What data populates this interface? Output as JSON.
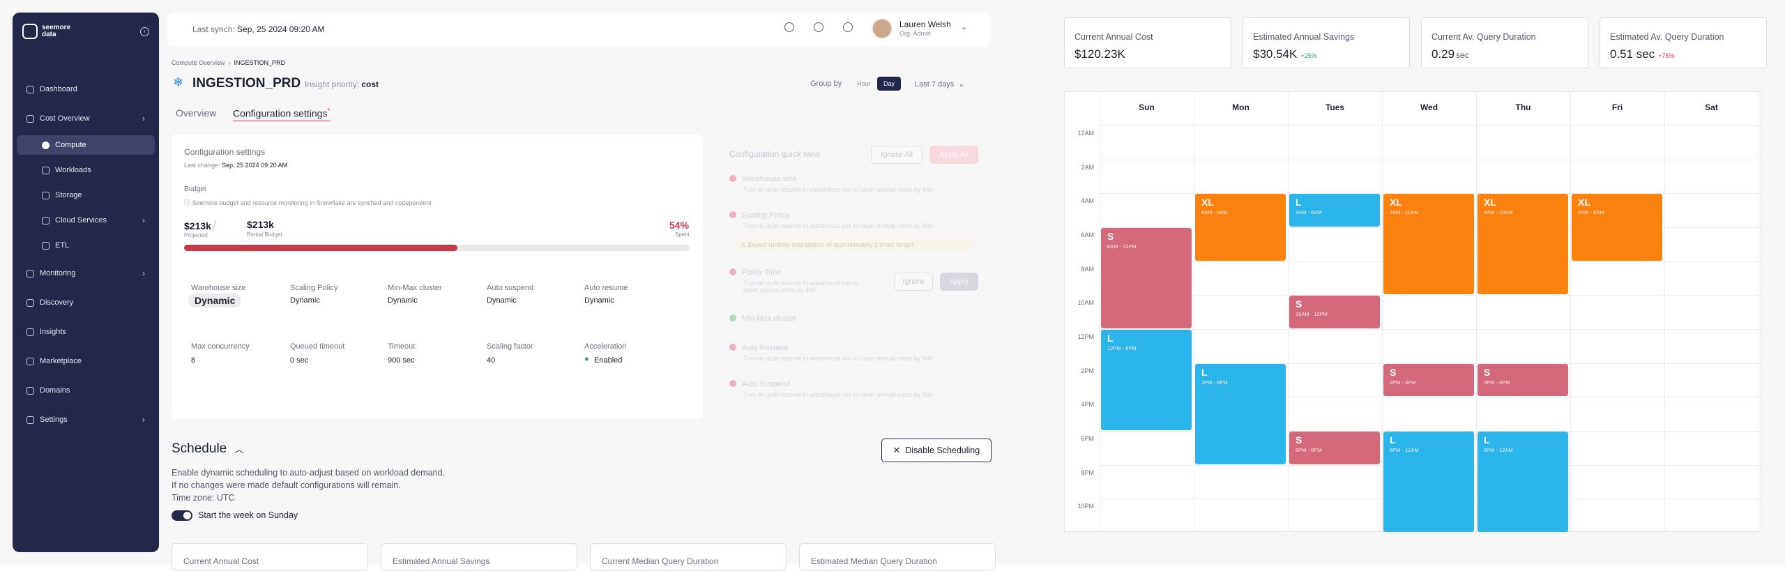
{
  "app": {
    "brand": "seemore\ndata",
    "last_sync_label": "Last synch:",
    "last_sync_value": "Sep, 25 2024  09:20 AM"
  },
  "user": {
    "name": "Lauren Welsh",
    "role": "Org. Admin"
  },
  "sidebar": {
    "items": [
      {
        "label": "Dashboard",
        "icon": "dashboard-icon"
      },
      {
        "label": "Cost Overview",
        "icon": "cost-icon",
        "chevron": true
      },
      {
        "label": "Compute",
        "icon": "compute-icon",
        "active": true,
        "sub": true
      },
      {
        "label": "Workloads",
        "icon": "workloads-icon",
        "sub": true
      },
      {
        "label": "Storage",
        "icon": "storage-icon",
        "sub": true
      },
      {
        "label": "Cloud Services",
        "icon": "cloud-icon",
        "sub": true,
        "chevron": true
      },
      {
        "label": "ETL",
        "icon": "etl-icon",
        "sub": true
      },
      {
        "label": "Monitoring",
        "icon": "monitoring-icon",
        "chevron": true
      },
      {
        "label": "Discovery",
        "icon": "discovery-icon"
      },
      {
        "label": "Insights",
        "icon": "insights-icon"
      },
      {
        "label": "Marketplace",
        "icon": "marketplace-icon"
      },
      {
        "label": "Domains",
        "icon": "domains-icon"
      },
      {
        "label": "Settings",
        "icon": "settings-icon",
        "chevron": true
      }
    ]
  },
  "breadcrumb": {
    "parent": "Compute Overview",
    "current": "INGESTION_PRD"
  },
  "page": {
    "title": "INGESTION_PRD",
    "priority_label": "Insight priority:",
    "priority_value": "cost",
    "group_by_label": "Group by",
    "group_hour": "Hour",
    "group_day": "Day",
    "range": "Last 7 days",
    "tab_overview": "Overview",
    "tab_config": "Configuration settings",
    "tab_config_mark": "*"
  },
  "config": {
    "title": "Configuration settings",
    "last_change_label": "Last change:",
    "last_change_value": "Sep, 25 2024  09:20 AM",
    "budget_label": "Budget",
    "budget_note": "Seemore budget and resource monitoring in Snowflake are synched and codependent",
    "spent_value": "$213k",
    "spent_label": "Projected",
    "period_value": "$213k",
    "period_label": "Period Budget",
    "pct": "54%",
    "pct_label": "Spent",
    "pct_fraction": 0.54,
    "fields_row1": [
      {
        "label": "Warehouse size",
        "value": "Dynamic"
      },
      {
        "label": "Scaling Policy",
        "value": "Dynamic"
      },
      {
        "label": "Min-Max cluster",
        "value": "Dynamic"
      },
      {
        "label": "Auto suspend",
        "value": "Dynamic"
      },
      {
        "label": "Auto resume",
        "value": "Dynamic"
      }
    ],
    "fields_row2": [
      {
        "label": "Max concurrency",
        "value": "8"
      },
      {
        "label": "Queued timeout",
        "value": "0 sec"
      },
      {
        "label": "Timeout",
        "value": "900 sec"
      },
      {
        "label": "Scaling factor",
        "value": "40"
      },
      {
        "label": "Acceleration",
        "value": "Enabled"
      }
    ]
  },
  "quick_wins": {
    "title": "Configuration quick wins",
    "ignore_all": "Ignore All",
    "apply_all": "Apply All",
    "ignore": "Ignore",
    "apply": "Apply",
    "desc": "Turn on auto resume in warehouse xxx to lower annual costs by $40",
    "warning": "Expect runtime degradation of approximately 3 times longer",
    "items": [
      "Warehouse size",
      "Scaling Policy",
      "Policy Time",
      "Min-Max cluster",
      "Auto Resume",
      "Auto Suspend"
    ]
  },
  "schedule": {
    "title": "Schedule",
    "line1": "Enable dynamic scheduling to auto-adjust based on workload demand.",
    "line2": "If no changes were made default configurations will remain.",
    "line3": "Time zone: UTC",
    "toggle_label": "Start the week on Sunday",
    "disable_button": "Disable Scheduling",
    "bottom_cards": [
      "Current Annual Cost",
      "Estimated Annual Savings",
      "Current Median Query Duration",
      "Estimated Median Query Duration"
    ]
  },
  "kpis": [
    {
      "label": "Current Annual Cost",
      "value": "$120.23K",
      "delta": "",
      "unit": ""
    },
    {
      "label": "Estimated Annual Savings",
      "value": "$30.54K",
      "delta": "+25%",
      "delta_color": "#2fae62",
      "unit": ""
    },
    {
      "label": "Current Av. Query Duration",
      "value": "0.29",
      "delta": "",
      "unit": "sec"
    },
    {
      "label": "Estimated Av. Query Duration",
      "value": "0.51 sec",
      "delta": "+75%",
      "delta_color": "#e0314e",
      "unit": ""
    }
  ],
  "calendar": {
    "days": [
      "Sun",
      "Mon",
      "Tues",
      "Wed",
      "Thu",
      "Fri",
      "Sat"
    ],
    "time_labels": [
      "12AM",
      "2AM",
      "4AM",
      "6AM",
      "8AM",
      "10AM",
      "12PM",
      "2PM",
      "4PM",
      "6PM",
      "8PM",
      "10PM"
    ],
    "events": [
      {
        "day": 0,
        "start": 6,
        "end": 12,
        "size": "S",
        "time": "6AM - 12PM"
      },
      {
        "day": 0,
        "start": 12,
        "end": 18,
        "size": "L",
        "time": "12PM - 6PM"
      },
      {
        "day": 1,
        "start": 4,
        "end": 8,
        "size": "XL",
        "time": "4AM - 8AM"
      },
      {
        "day": 1,
        "start": 14,
        "end": 20,
        "size": "L",
        "time": "2PM - 8PM"
      },
      {
        "day": 2,
        "start": 4,
        "end": 6,
        "size": "L",
        "time": "4AM - 6AM"
      },
      {
        "day": 2,
        "start": 10,
        "end": 12,
        "size": "S",
        "time": "10AM - 12PM"
      },
      {
        "day": 2,
        "start": 18,
        "end": 20,
        "size": "S",
        "time": "6PM - 8PM"
      },
      {
        "day": 3,
        "start": 4,
        "end": 10,
        "size": "XL",
        "time": "4AM - 10AM"
      },
      {
        "day": 3,
        "start": 14,
        "end": 16,
        "size": "S",
        "time": "2PM - 4PM"
      },
      {
        "day": 3,
        "start": 18,
        "end": 24,
        "size": "L",
        "time": "6PM - 12AM"
      },
      {
        "day": 4,
        "start": 4,
        "end": 10,
        "size": "XL",
        "time": "4AM - 10AM"
      },
      {
        "day": 4,
        "start": 14,
        "end": 16,
        "size": "S",
        "time": "2PM - 4PM"
      },
      {
        "day": 4,
        "start": 18,
        "end": 24,
        "size": "L",
        "time": "6PM - 12AM"
      },
      {
        "day": 5,
        "start": 4,
        "end": 8,
        "size": "XL",
        "time": "4AM - 8AM"
      }
    ]
  }
}
